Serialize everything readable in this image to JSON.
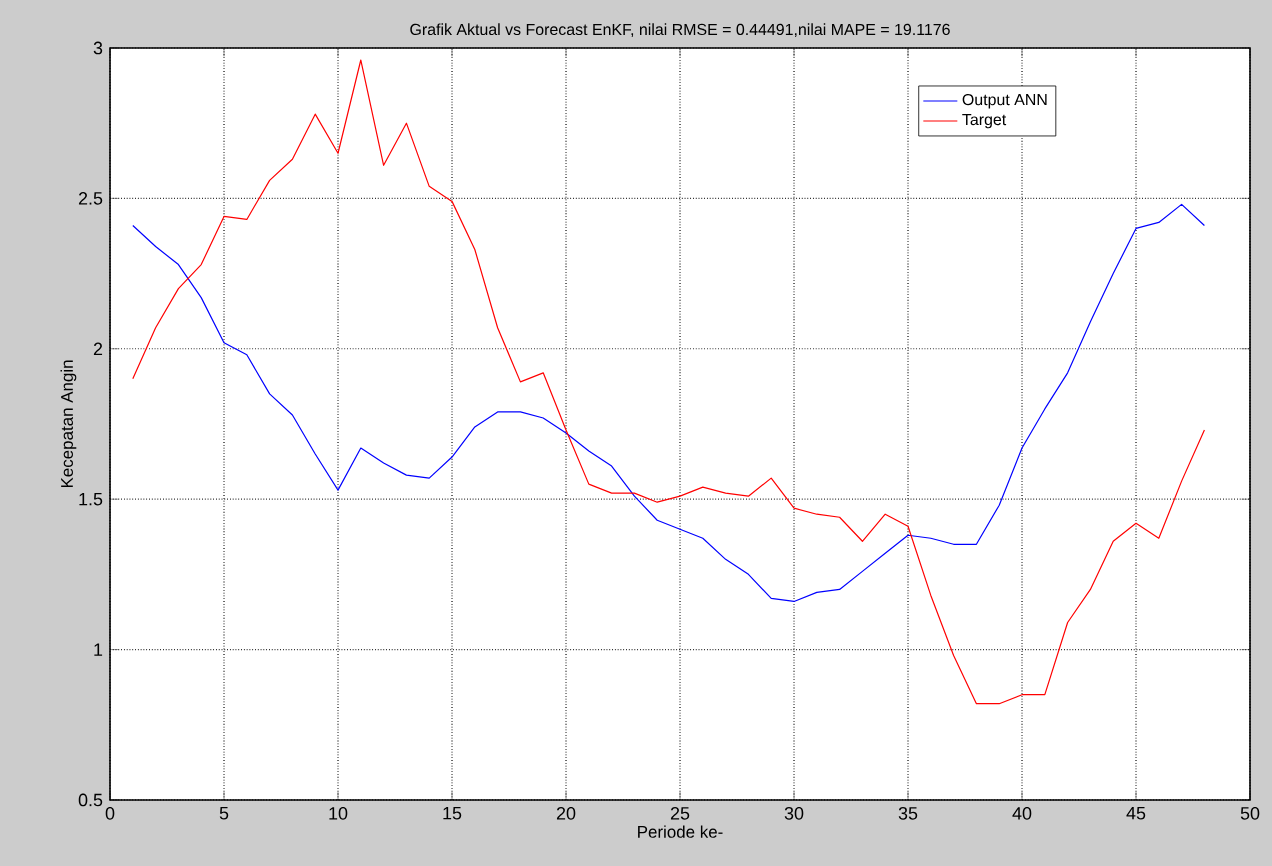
{
  "chart_data": {
    "type": "line",
    "title": "Grafik Aktual vs Forecast EnKF, nilai RMSE = 0.44491,nilai MAPE = 19.1176",
    "xlabel": "Periode ke-",
    "ylabel": "Kecepatan Angin",
    "x": [
      1,
      2,
      3,
      4,
      5,
      6,
      7,
      8,
      9,
      10,
      11,
      12,
      13,
      14,
      15,
      16,
      17,
      18,
      19,
      20,
      21,
      22,
      23,
      24,
      25,
      26,
      27,
      28,
      29,
      30,
      31,
      32,
      33,
      34,
      35,
      36,
      37,
      38,
      39,
      40,
      41,
      42,
      43,
      44,
      45,
      46,
      47,
      48
    ],
    "series": [
      {
        "name": "Output ANN",
        "color": "#0000ff",
        "values": [
          2.41,
          2.34,
          2.28,
          2.17,
          2.02,
          1.98,
          1.85,
          1.78,
          1.65,
          1.53,
          1.67,
          1.62,
          1.58,
          1.57,
          1.64,
          1.74,
          1.79,
          1.79,
          1.77,
          1.72,
          1.66,
          1.61,
          1.51,
          1.43,
          1.4,
          1.37,
          1.3,
          1.25,
          1.17,
          1.16,
          1.19,
          1.2,
          1.26,
          1.32,
          1.38,
          1.37,
          1.35,
          1.35,
          1.48,
          1.67,
          1.8,
          1.92,
          2.09,
          2.25,
          2.4,
          2.42,
          2.48,
          2.41
        ]
      },
      {
        "name": "Target",
        "color": "#ff0000",
        "values": [
          1.9,
          2.07,
          2.2,
          2.28,
          2.44,
          2.43,
          2.56,
          2.63,
          2.78,
          2.65,
          2.96,
          2.61,
          2.75,
          2.54,
          2.49,
          2.33,
          2.07,
          1.89,
          1.92,
          1.73,
          1.55,
          1.52,
          1.52,
          1.49,
          1.51,
          1.54,
          1.52,
          1.51,
          1.57,
          1.47,
          1.45,
          1.44,
          1.36,
          1.45,
          1.41,
          1.18,
          0.98,
          0.82,
          0.82,
          0.85,
          0.85,
          1.09,
          1.2,
          1.36,
          1.42,
          1.37,
          1.56,
          1.73
        ]
      }
    ],
    "xlim": [
      0,
      50
    ],
    "ylim": [
      0.5,
      3
    ],
    "xticks": [
      0,
      5,
      10,
      15,
      20,
      25,
      30,
      35,
      40,
      45,
      50
    ],
    "yticks": [
      0.5,
      1,
      1.5,
      2,
      2.5,
      3
    ],
    "grid": true,
    "legend": "top right",
    "marker": "none",
    "line_style": "solid"
  }
}
